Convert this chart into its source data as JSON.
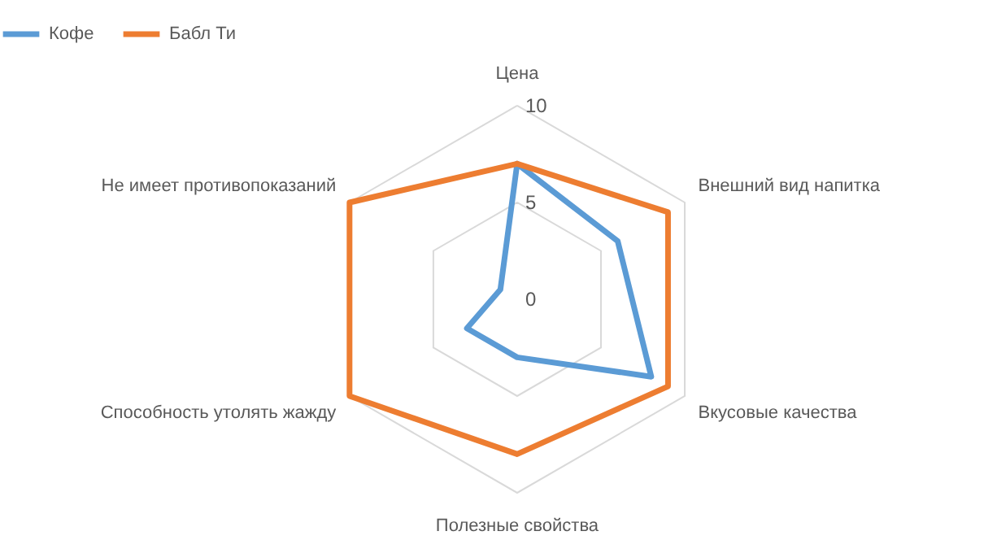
{
  "chart_data": {
    "type": "radar",
    "categories": [
      "Цена",
      "Внешний вид напитка",
      "Вкусовые качества",
      "Полезные свойства",
      "Способность утолять жажду",
      "Не имеет противопоказаний"
    ],
    "series": [
      {
        "name": "Кофе",
        "color": "#5b9bd5",
        "values": [
          7,
          6,
          8,
          3,
          3,
          1
        ]
      },
      {
        "name": "Бабл Ти",
        "color": "#ed7d31",
        "values": [
          7,
          9,
          9,
          8,
          10,
          10
        ]
      }
    ],
    "ylim": [
      0,
      10
    ],
    "yticks": [
      0,
      5,
      10
    ],
    "grid": true,
    "legend": "top"
  }
}
